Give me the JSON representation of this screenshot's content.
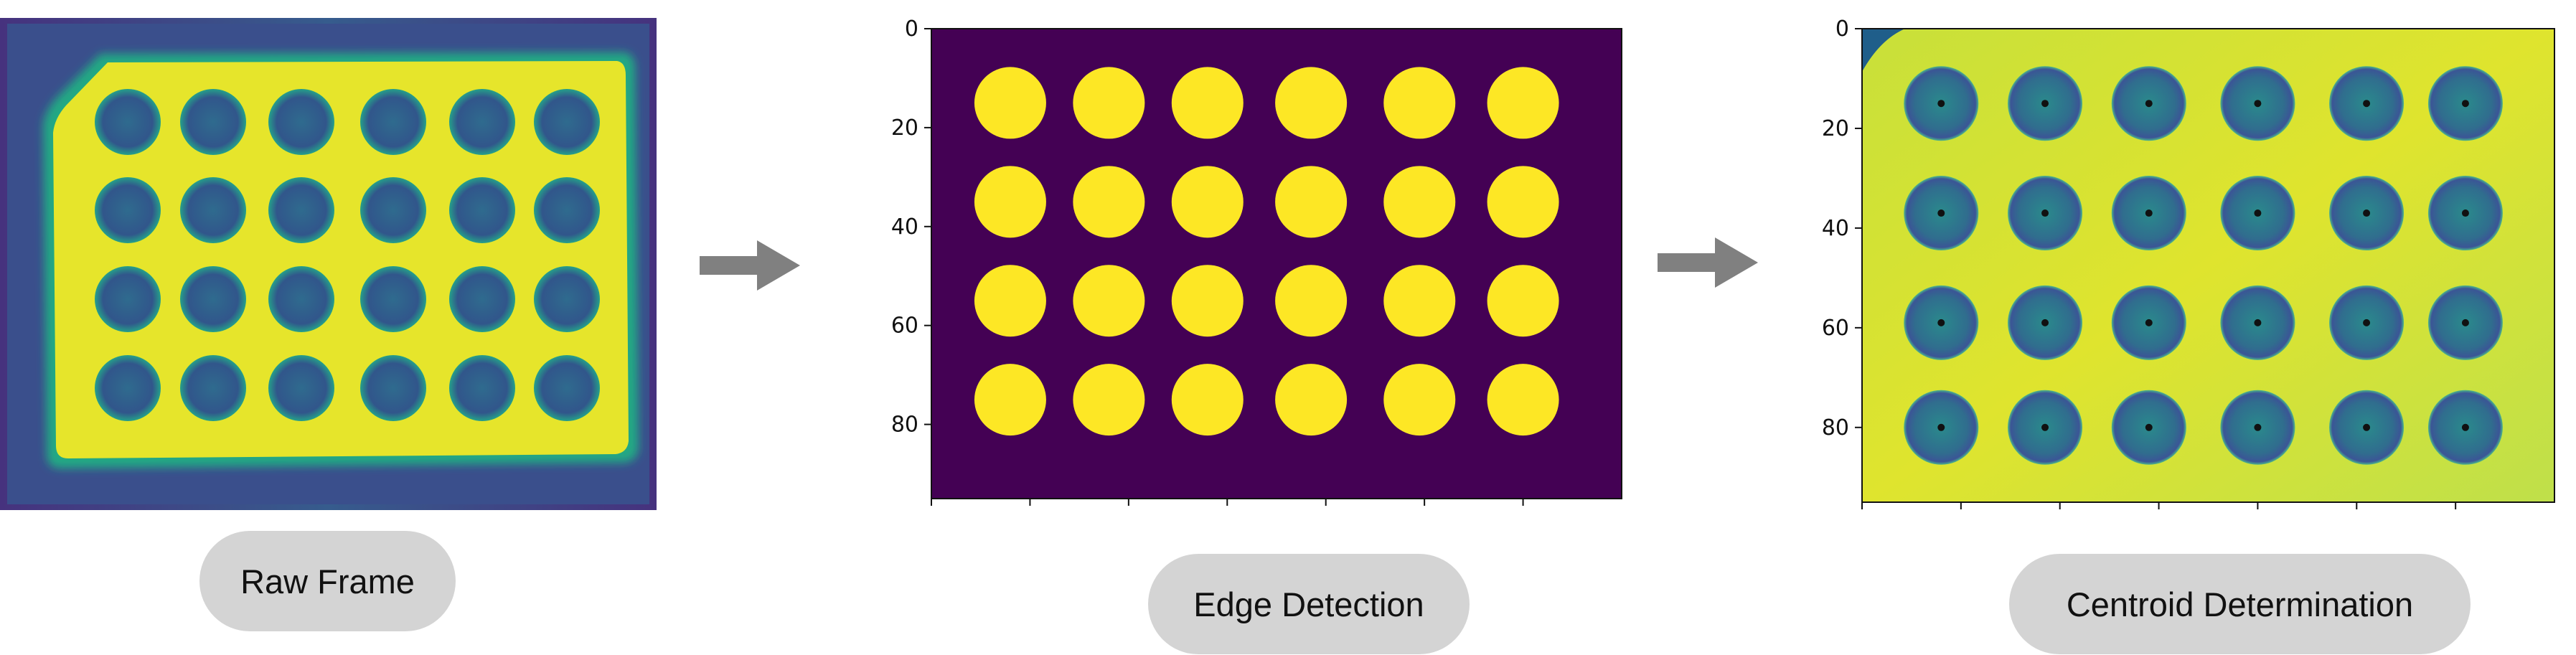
{
  "steps": [
    {
      "label": "Raw Frame"
    },
    {
      "label": "Edge Detection"
    },
    {
      "label": "Centroid Determination"
    }
  ],
  "grid": {
    "rows": 4,
    "cols": 6
  },
  "centroids_x": [
    16,
    37,
    58,
    80,
    102,
    122
  ],
  "centroids_y": [
    15,
    37,
    59,
    80
  ],
  "axis": {
    "x_ticks": [
      0,
      20,
      40,
      60,
      80,
      100,
      120
    ],
    "y_ticks": [
      0,
      20,
      40,
      60,
      80
    ],
    "x_range": [
      0,
      140
    ],
    "y_range": [
      0,
      95
    ]
  },
  "colors": {
    "dark": "#440154",
    "bright": "#fde725",
    "raw_bg": "#eaea2a",
    "disc": "#35609a",
    "arrow": "#808080",
    "pill": "#d4d4d4"
  }
}
